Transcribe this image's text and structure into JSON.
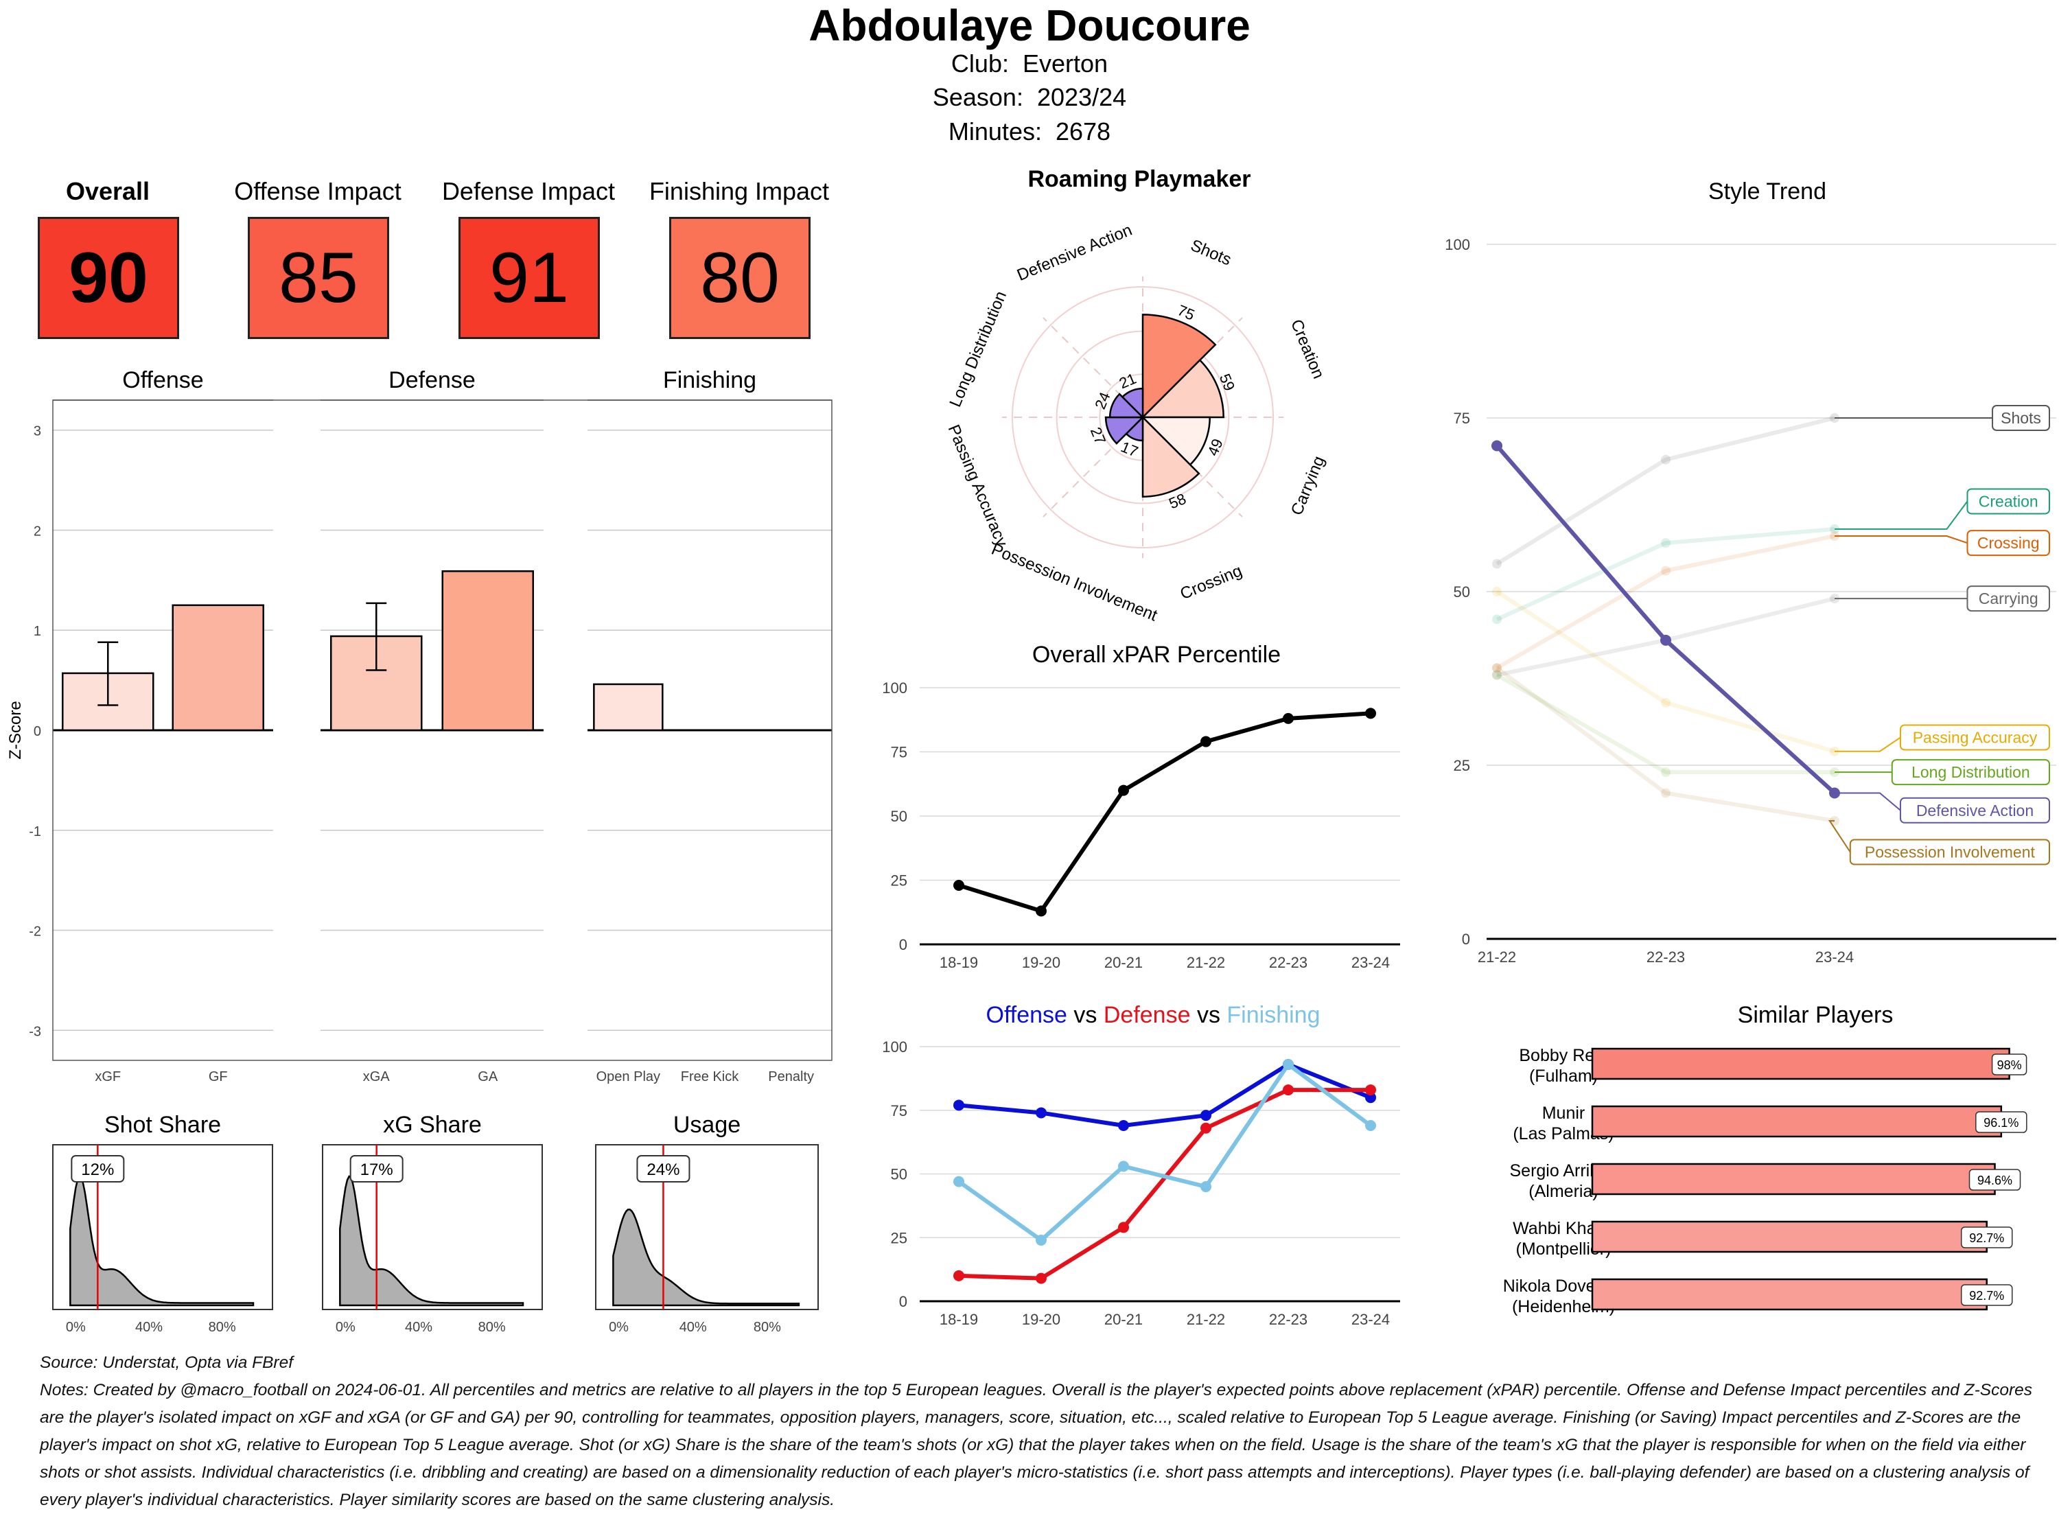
{
  "header": {
    "player_name": "Abdoulaye Doucoure",
    "club_label": "Club:",
    "club": "Everton",
    "season_label": "Season:",
    "season": "2023/24",
    "minutes_label": "Minutes:",
    "minutes": "2678"
  },
  "kpis": [
    {
      "label": "Overall",
      "value": "90",
      "color": "#f53c2c"
    },
    {
      "label": "Offense Impact",
      "value": "85",
      "color": "#f95c47"
    },
    {
      "label": "Defense Impact",
      "value": "91",
      "color": "#f53a2a"
    },
    {
      "label": "Finishing Impact",
      "value": "80",
      "color": "#fb7357"
    }
  ],
  "chart_data": [
    {
      "id": "zscore",
      "type": "bar",
      "ylabel": "Z-Score",
      "ylim": [
        -3.3,
        3.3
      ],
      "yticks": [
        "3",
        "2",
        "1",
        "0",
        "-1",
        "-2",
        "-3"
      ],
      "panels": [
        {
          "title": "Offense",
          "categories": [
            "xGF",
            "GF"
          ],
          "values": [
            0.57,
            1.25
          ],
          "error": [
            [
              0.25,
              0.88
            ],
            null
          ],
          "colors": [
            "#fde0d8",
            "#fbb4a0"
          ]
        },
        {
          "title": "Defense",
          "categories": [
            "xGA",
            "GA"
          ],
          "values": [
            0.94,
            1.59
          ],
          "error": [
            [
              0.6,
              1.27
            ],
            null
          ],
          "colors": [
            "#fcc9b8",
            "#fba88c"
          ]
        },
        {
          "title": "Finishing",
          "categories": [
            "Open Play",
            "Free Kick",
            "Penalty"
          ],
          "values": [
            0.46,
            0,
            0
          ],
          "error": [
            null,
            null,
            null
          ],
          "colors": [
            "#fee3dc",
            "#fee3dc",
            "#fee3dc"
          ]
        }
      ]
    },
    {
      "id": "shares",
      "type": "area",
      "x_ticks": [
        "0%",
        "40%",
        "80%"
      ],
      "panels": [
        {
          "title": "Shot Share",
          "value_label": "12%",
          "marker": 12
        },
        {
          "title": "xG Share",
          "value_label": "17%",
          "marker": 17
        },
        {
          "title": "Usage",
          "value_label": "24%",
          "marker": 24
        }
      ]
    },
    {
      "id": "radar",
      "type": "bar",
      "title": "Roaming Playmaker",
      "categories": [
        "Shots",
        "Creation",
        "Carrying",
        "Crossing",
        "Possession Involvement",
        "Passing Accuracy",
        "Long Distribution",
        "Defensive Action"
      ],
      "values": [
        75,
        59,
        49,
        58,
        17,
        27,
        24,
        21
      ],
      "value_labels": [
        "75",
        "59",
        "49",
        "58",
        "17",
        "27",
        "24",
        "21"
      ],
      "colors": [
        "#fb8a6e",
        "#fdd2c4",
        "#fff0ec",
        "#fdd2c4",
        "#9b7fe8",
        "#9b7fe8",
        "#9b7fe8",
        "#9b7fe8"
      ]
    },
    {
      "id": "xpar",
      "type": "line",
      "title": "Overall xPAR Percentile",
      "categories": [
        "18-19",
        "19-20",
        "20-21",
        "21-22",
        "22-23",
        "23-24"
      ],
      "values": [
        23,
        13,
        60,
        79,
        88,
        90
      ],
      "ylim": [
        0,
        100
      ],
      "yticks": [
        "0",
        "25",
        "50",
        "75",
        "100"
      ]
    },
    {
      "id": "ovd",
      "type": "line",
      "title_parts": [
        "Offense",
        "vs",
        "Defense",
        "vs",
        "Finishing"
      ],
      "categories": [
        "18-19",
        "19-20",
        "20-21",
        "21-22",
        "22-23",
        "23-24"
      ],
      "ylim": [
        0,
        100
      ],
      "yticks": [
        "0",
        "25",
        "50",
        "75",
        "100"
      ],
      "series": [
        {
          "name": "Offense",
          "color": "#0a0fd8",
          "values": [
            77,
            74,
            69,
            73,
            93,
            80
          ]
        },
        {
          "name": "Defense",
          "color": "#e5101a",
          "values": [
            10,
            9,
            29,
            68,
            83,
            83
          ]
        },
        {
          "name": "Finishing",
          "color": "#7cc3e6",
          "values": [
            47,
            24,
            53,
            45,
            93,
            69
          ]
        }
      ]
    },
    {
      "id": "style",
      "type": "line",
      "title": "Style Trend",
      "categories": [
        "21-22",
        "22-23",
        "23-24"
      ],
      "ylim": [
        0,
        100
      ],
      "yticks": [
        "0",
        "25",
        "50",
        "75",
        "100"
      ],
      "series": [
        {
          "name": "Shots",
          "color": "#555555",
          "values": [
            54,
            69,
            75
          ],
          "label_value": 75
        },
        {
          "name": "Creation",
          "color": "#1b9e77",
          "values": [
            46,
            57,
            59
          ],
          "label_value": 63
        },
        {
          "name": "Crossing",
          "color": "#d95f02",
          "values": [
            39,
            53,
            58
          ],
          "label_value": 57
        },
        {
          "name": "Carrying",
          "color": "#666666",
          "values": [
            38,
            43,
            49
          ],
          "label_value": 49
        },
        {
          "name": "Passing Accuracy",
          "color": "#e6ab02",
          "values": [
            50,
            34,
            27
          ],
          "label_value": 29
        },
        {
          "name": "Long Distribution",
          "color": "#66a61e",
          "values": [
            38,
            24,
            24
          ],
          "label_value": 24
        },
        {
          "name": "Defensive Action",
          "color": "#5e55a6",
          "values": [
            71,
            43,
            21
          ],
          "label_value": 18.5,
          "highlight": true
        },
        {
          "name": "Possession Involvement",
          "color": "#a6761d",
          "values": [
            39,
            21,
            17
          ],
          "label_value": 12.5
        }
      ]
    },
    {
      "id": "similar",
      "type": "bar",
      "title": "Similar Players",
      "categories": [
        "Bobby Reid\n(Fulham)",
        "Munir\n(Las Palmas)",
        "Sergio Arribas\n(Almeria)",
        "Wahbi Khazri\n(Montpellier)",
        "Nikola Dovedan\n(Heidenheim)"
      ],
      "values": [
        98,
        96.1,
        94.6,
        92.7,
        92.7
      ],
      "value_labels": [
        "98%",
        "96.1%",
        "94.6%",
        "92.7%",
        "92.7%"
      ],
      "colors": [
        "#f88379",
        "#f88d84",
        "#f9958c",
        "#f99e96",
        "#f99e96"
      ]
    }
  ],
  "footer": {
    "source": "Source: Understat, Opta via FBref",
    "notes": "Notes: Created by @macro_football on 2024-06-01. All percentiles and metrics are relative to all players in the top 5 European leagues. Overall is the player's expected points above replacement (xPAR) percentile. Offense and Defense Impact percentiles and Z-Scores are the player's isolated impact on xGF and xGA (or GF and GA) per 90, controlling for teammates, opposition players, managers, score, situation, etc..., scaled relative to European Top 5 League average. Finishing (or Saving) Impact percentiles and Z-Scores are the player's impact on shot xG, relative to European Top 5 League average. Shot (or xG) Share is the share of the team's shots (or xG) that the player takes when on the field. Usage is the share of the team's xG that the player is responsible for when on the field via either shots or shot assists. Individual characteristics (i.e. dribbling and creating) are based on a dimensionality reduction of each player's micro-statistics (i.e. short pass attempts and interceptions). Player types (i.e. ball-playing defender) are based on a clustering analysis of every player's individual characteristics. Player similarity scores are based on the same clustering analysis."
  }
}
